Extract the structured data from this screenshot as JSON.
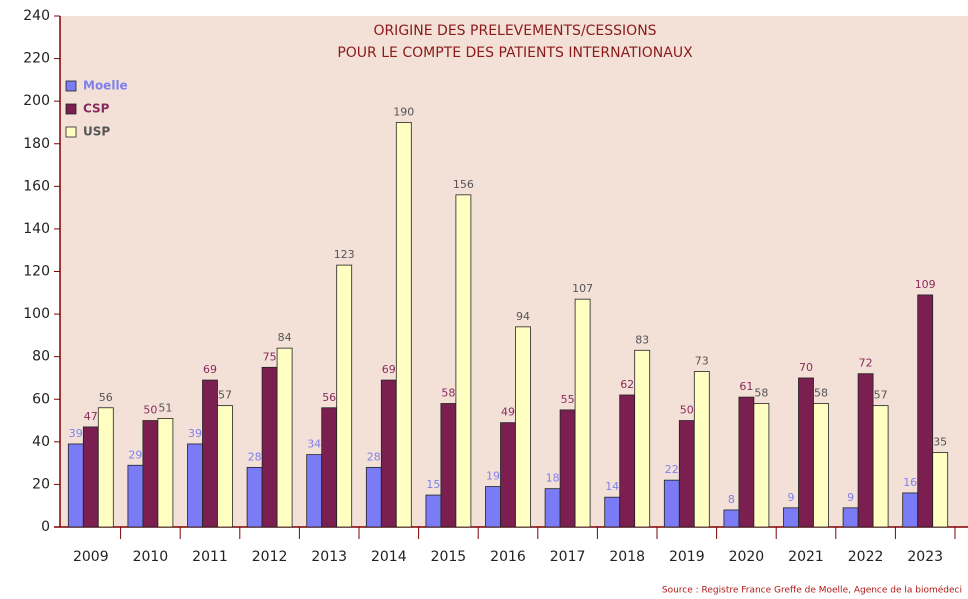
{
  "chart_data": {
    "type": "bar",
    "title": [
      "ORIGINE DES PRELEVEMENTS/CESSIONS",
      "POUR LE COMPTE DES PATIENTS INTERNATIONAUX"
    ],
    "categories": [
      "2009",
      "2010",
      "2011",
      "2012",
      "2013",
      "2014",
      "2015",
      "2016",
      "2017",
      "2018",
      "2019",
      "2020",
      "2021",
      "2022",
      "2023"
    ],
    "series": [
      {
        "name": "Moelle",
        "color": "#7b7bf5",
        "label_color": "#7f7ff0",
        "values": [
          39,
          29,
          39,
          28,
          34,
          28,
          15,
          19,
          18,
          14,
          22,
          8,
          9,
          9,
          16
        ]
      },
      {
        "name": "CSP",
        "color": "#7a1f50",
        "label_color": "#8b2a5c",
        "values": [
          47,
          50,
          69,
          75,
          56,
          69,
          58,
          49,
          55,
          62,
          50,
          61,
          70,
          72,
          109
        ]
      },
      {
        "name": "USP",
        "color": "#ffffc2",
        "label_color": "#555555",
        "values": [
          56,
          51,
          57,
          84,
          123,
          190,
          156,
          94,
          107,
          83,
          73,
          58,
          58,
          57,
          35
        ]
      }
    ],
    "ylim": [
      0,
      240
    ],
    "yticks": [
      0,
      20,
      40,
      60,
      80,
      100,
      120,
      140,
      160,
      180,
      200,
      220,
      240
    ],
    "legend": "upper left",
    "source": "Source : Registre France Greffe de Moelle, Agence de la biomédeci"
  }
}
